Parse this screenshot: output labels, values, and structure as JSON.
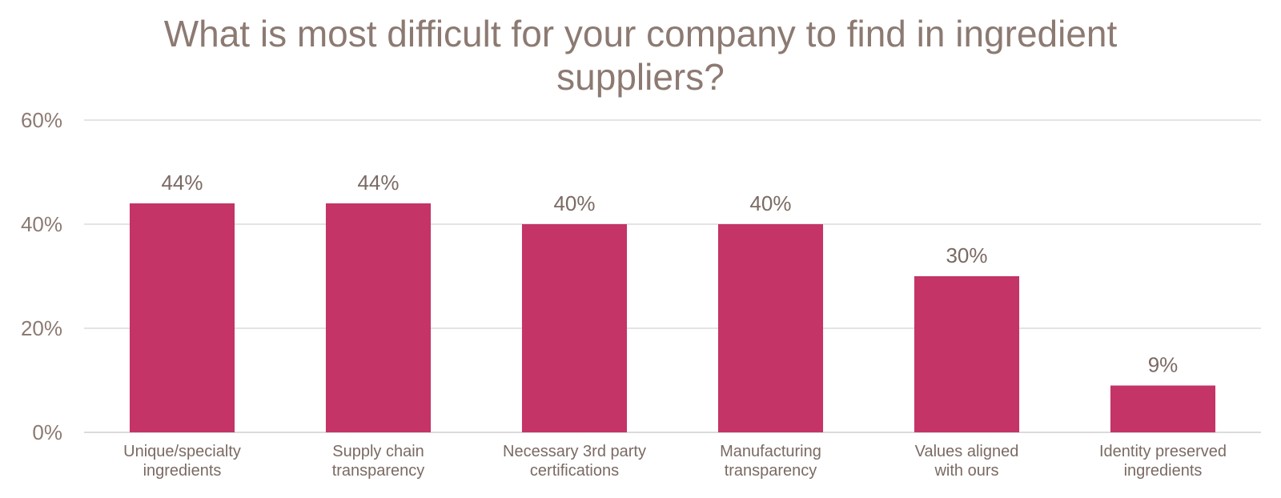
{
  "chart_data": {
    "type": "bar",
    "title_lines": [
      "What is most difficult for your company to find in ingredient",
      "suppliers?"
    ],
    "categories": [
      [
        "Unique/specialty",
        "ingredients"
      ],
      [
        "Supply chain",
        "transparency"
      ],
      [
        "Necessary 3rd party",
        "certifications"
      ],
      [
        "Manufacturing",
        "transparency"
      ],
      [
        "Values aligned",
        "with ours"
      ],
      [
        "Identity preserved",
        "ingredients"
      ]
    ],
    "values": [
      44,
      44,
      40,
      40,
      30,
      9
    ],
    "data_labels": [
      "44%",
      "44%",
      "40%",
      "40%",
      "30%",
      "9%"
    ],
    "yticks": [
      0,
      20,
      40,
      60
    ],
    "ytick_labels": [
      "0%",
      "20%",
      "40%",
      "60%"
    ],
    "ylim": [
      0,
      60
    ],
    "grid": true,
    "legend": "none",
    "colors": {
      "bar": "#c43466"
    }
  }
}
